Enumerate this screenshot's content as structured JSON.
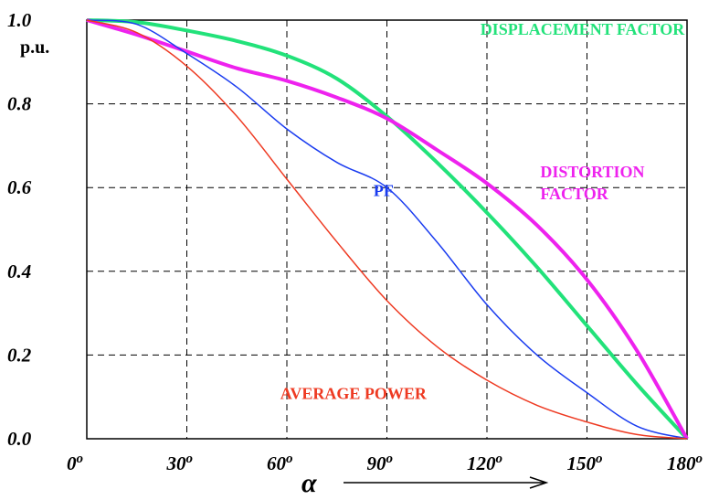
{
  "chart_data": {
    "type": "line",
    "y_unit": "p.u.",
    "xlabel": "α",
    "xlim": [
      0,
      180
    ],
    "ylim": [
      0,
      1.0
    ],
    "grid": true,
    "x_ticks": [
      {
        "value": 0,
        "label": "0"
      },
      {
        "value": 30,
        "label": "30"
      },
      {
        "value": 60,
        "label": "60"
      },
      {
        "value": 90,
        "label": "90"
      },
      {
        "value": 120,
        "label": "120"
      },
      {
        "value": 150,
        "label": "150"
      },
      {
        "value": 180,
        "label": "180"
      }
    ],
    "degree_symbol": "o",
    "y_ticks": [
      {
        "value": 0.0,
        "label": "0.0"
      },
      {
        "value": 0.2,
        "label": "0.2"
      },
      {
        "value": 0.4,
        "label": "0.4"
      },
      {
        "value": 0.6,
        "label": "0.6"
      },
      {
        "value": 0.8,
        "label": "0.8"
      },
      {
        "value": 1.0,
        "label": "1.0"
      }
    ],
    "x": [
      0,
      15,
      30,
      45,
      60,
      75,
      90,
      105,
      120,
      135,
      150,
      165,
      180
    ],
    "series": [
      {
        "id": "displacement",
        "label_lines": [
          "DISPLACEMENT FACTOR"
        ],
        "color": "#22e27a",
        "stroke": 4,
        "label_x": 118,
        "label_y": 0.965,
        "values": [
          1.0,
          0.995,
          0.975,
          0.95,
          0.915,
          0.86,
          0.77,
          0.66,
          0.54,
          0.41,
          0.27,
          0.13,
          0.0
        ]
      },
      {
        "id": "distortion",
        "label_lines": [
          "DISTORTION",
          "FACTOR"
        ],
        "color": "#ee22ee",
        "stroke": 4,
        "label_x": 136,
        "label_y": 0.625,
        "values": [
          1.0,
          0.965,
          0.925,
          0.885,
          0.855,
          0.815,
          0.765,
          0.69,
          0.61,
          0.51,
          0.38,
          0.21,
          0.0
        ]
      },
      {
        "id": "pf",
        "label_lines": [
          "PF"
        ],
        "color": "#1a3cf0",
        "stroke": 1.5,
        "label_x": 86,
        "label_y": 0.58,
        "values": [
          1.0,
          0.99,
          0.92,
          0.84,
          0.74,
          0.66,
          0.6,
          0.47,
          0.32,
          0.2,
          0.11,
          0.03,
          0.0
        ]
      },
      {
        "id": "average_power",
        "label_lines": [
          "AVERAGE  POWER"
        ],
        "color": "#ee3a22",
        "stroke": 1.5,
        "label_x": 58,
        "label_y": 0.095,
        "values": [
          1.0,
          0.97,
          0.89,
          0.77,
          0.62,
          0.47,
          0.33,
          0.22,
          0.14,
          0.08,
          0.04,
          0.01,
          0.0
        ]
      }
    ]
  }
}
